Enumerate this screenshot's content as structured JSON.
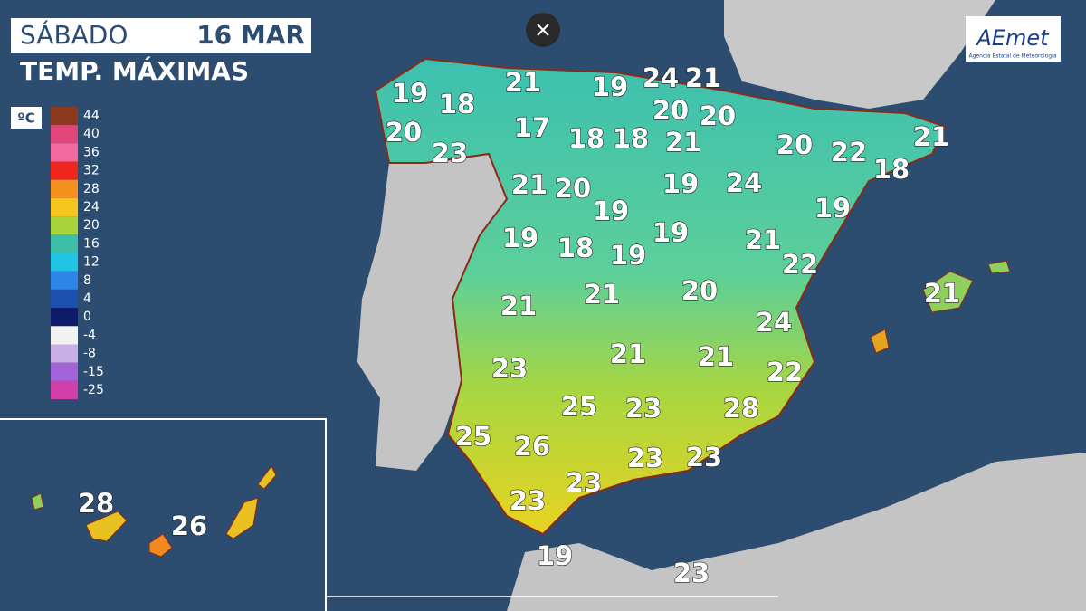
{
  "header": {
    "day": "SÁBADO",
    "date": "16 MAR",
    "subtitle": "TEMP. MÁXIMAS"
  },
  "legend": {
    "unit": "ºC",
    "ticks": [
      44,
      40,
      36,
      32,
      28,
      24,
      20,
      16,
      12,
      8,
      4,
      0,
      -4,
      -8,
      -15,
      -25
    ],
    "colors": [
      "#8b3a1e",
      "#e0467a",
      "#f06aa0",
      "#f0261e",
      "#f6911e",
      "#f4c61e",
      "#a6d43a",
      "#3cbfa6",
      "#22c4e4",
      "#2b86e6",
      "#1d4fb0",
      "#0e1b6a",
      "#f2f2f2",
      "#c9b0e6",
      "#a264d8",
      "#d040a8"
    ]
  },
  "logo": {
    "name": "AEmet",
    "tagline": "Agencia Estatal de Meteorología"
  },
  "temperatures": [
    19,
    18,
    21,
    19,
    24,
    21,
    20,
    20,
    17,
    18,
    18,
    21,
    20,
    22,
    21,
    18,
    23,
    20,
    21,
    20,
    19,
    19,
    24,
    19,
    19,
    18,
    19,
    19,
    21,
    22,
    21,
    21,
    21,
    20,
    24,
    23,
    21,
    21,
    22,
    25,
    23,
    28,
    25,
    26,
    23,
    23,
    23,
    23,
    19,
    23,
    28,
    26
  ]
}
